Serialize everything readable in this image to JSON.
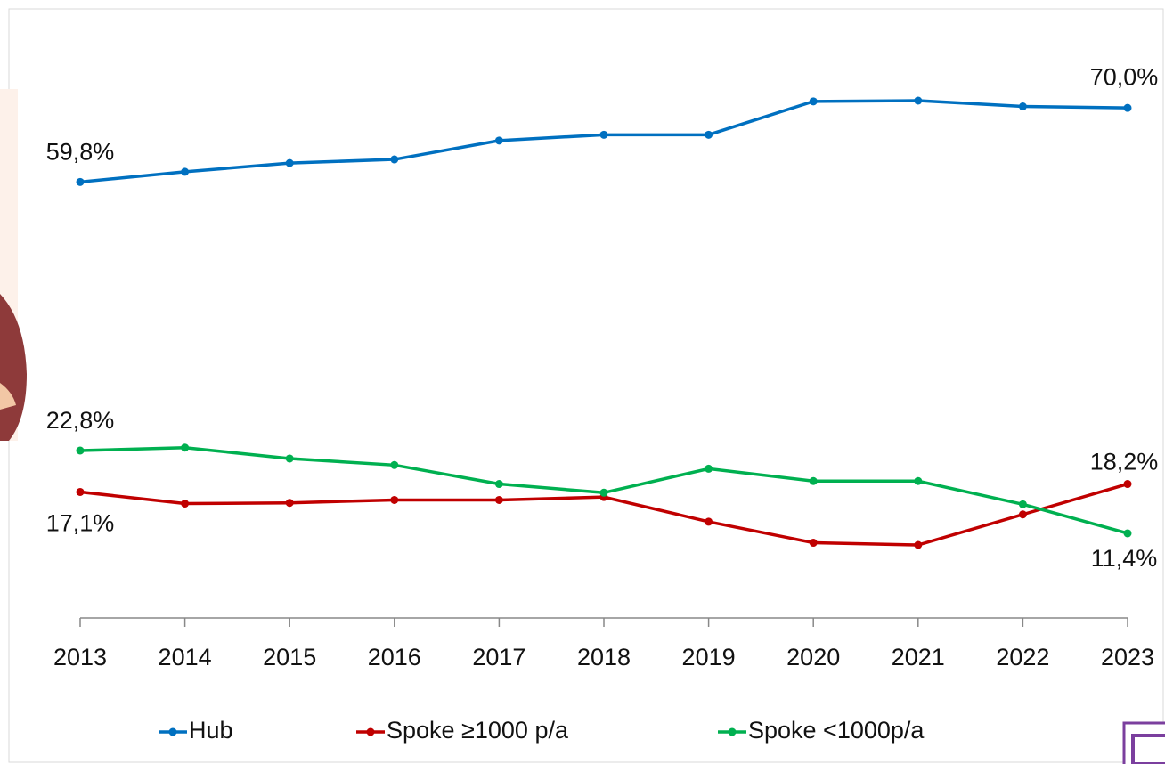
{
  "chart_data": {
    "type": "line",
    "categories": [
      "2013",
      "2014",
      "2015",
      "2016",
      "2017",
      "2018",
      "2019",
      "2020",
      "2021",
      "2022",
      "2023"
    ],
    "series": [
      {
        "name": "Hub",
        "color": "#0070c0",
        "values": [
          59.8,
          61.2,
          62.4,
          62.9,
          65.5,
          66.3,
          66.3,
          70.9,
          71.0,
          70.2,
          70.0
        ],
        "value_labels": [
          "59,8%",
          null,
          null,
          null,
          null,
          null,
          null,
          null,
          null,
          null,
          "70,0%"
        ]
      },
      {
        "name": "Spoke ≥1000 p/a",
        "color": "#c00000",
        "values": [
          17.1,
          15.5,
          15.6,
          16.0,
          16.0,
          16.4,
          13.0,
          10.1,
          9.8,
          14.0,
          18.2
        ],
        "value_labels": [
          "17,1%",
          null,
          null,
          null,
          null,
          null,
          null,
          null,
          null,
          null,
          "18,2%"
        ]
      },
      {
        "name": "Spoke <1000p/a",
        "color": "#00b050",
        "values": [
          22.8,
          23.2,
          21.7,
          20.8,
          18.2,
          17.0,
          20.3,
          18.6,
          18.6,
          15.4,
          11.4
        ],
        "value_labels": [
          "22,8%",
          null,
          null,
          null,
          null,
          null,
          null,
          null,
          null,
          null,
          "11,4%"
        ]
      }
    ]
  }
}
